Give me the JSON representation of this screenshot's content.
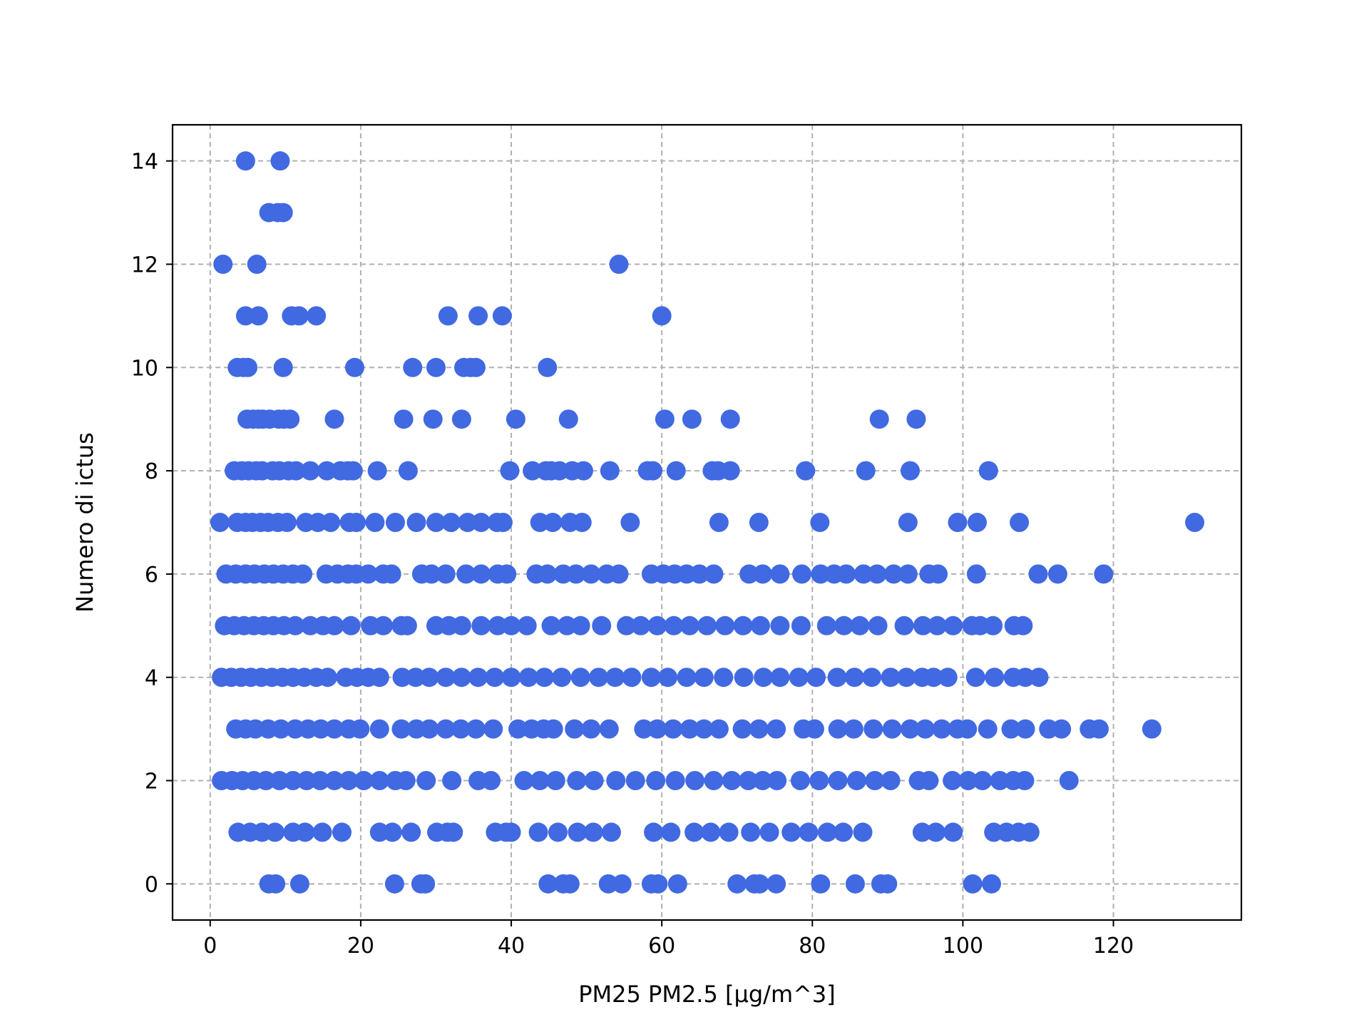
{
  "chart_data": {
    "type": "scatter",
    "title": "",
    "xlabel": "PM25 PM2.5 [µg/m^3]",
    "ylabel": "Numero di ictus",
    "xlim": [
      -5,
      137
    ],
    "ylim": [
      -0.7,
      14.7
    ],
    "xticks": [
      "0",
      "20",
      "40",
      "60",
      "80",
      "100",
      "120"
    ],
    "yticks": [
      "0",
      "2",
      "4",
      "6",
      "8",
      "10",
      "12",
      "14"
    ],
    "grid": true,
    "marker_color": "#4169e1",
    "points": [
      [
        4.7,
        14
      ],
      [
        9.3,
        14
      ],
      [
        7.8,
        13
      ],
      [
        9.0,
        13
      ],
      [
        9.7,
        13
      ],
      [
        1.7,
        12
      ],
      [
        6.2,
        12
      ],
      [
        54.3,
        12
      ],
      [
        4.7,
        11
      ],
      [
        6.4,
        11
      ],
      [
        10.8,
        11
      ],
      [
        11.8,
        11
      ],
      [
        14.1,
        11
      ],
      [
        31.6,
        11
      ],
      [
        35.6,
        11
      ],
      [
        38.8,
        11
      ],
      [
        60.0,
        11
      ],
      [
        3.6,
        10
      ],
      [
        4.4,
        10
      ],
      [
        5.0,
        10
      ],
      [
        9.7,
        10
      ],
      [
        19.2,
        10
      ],
      [
        26.9,
        10
      ],
      [
        30.0,
        10
      ],
      [
        33.7,
        10
      ],
      [
        34.6,
        10
      ],
      [
        35.3,
        10
      ],
      [
        44.8,
        10
      ],
      [
        4.9,
        9
      ],
      [
        5.7,
        9
      ],
      [
        6.4,
        9
      ],
      [
        7.0,
        9
      ],
      [
        7.9,
        9
      ],
      [
        9.1,
        9
      ],
      [
        9.8,
        9
      ],
      [
        10.6,
        9
      ],
      [
        16.5,
        9
      ],
      [
        25.7,
        9
      ],
      [
        29.6,
        9
      ],
      [
        33.4,
        9
      ],
      [
        40.6,
        9
      ],
      [
        47.6,
        9
      ],
      [
        60.4,
        9
      ],
      [
        64.0,
        9
      ],
      [
        69.1,
        9
      ],
      [
        88.9,
        9
      ],
      [
        93.8,
        9
      ],
      [
        3.2,
        8
      ],
      [
        4.2,
        8
      ],
      [
        5.1,
        8
      ],
      [
        6.1,
        8
      ],
      [
        6.9,
        8
      ],
      [
        8.3,
        8
      ],
      [
        9.2,
        8
      ],
      [
        10.4,
        8
      ],
      [
        11.4,
        8
      ],
      [
        13.3,
        8
      ],
      [
        15.5,
        8
      ],
      [
        17.3,
        8
      ],
      [
        18.3,
        8
      ],
      [
        19.0,
        8
      ],
      [
        22.2,
        8
      ],
      [
        26.3,
        8
      ],
      [
        39.8,
        8
      ],
      [
        42.8,
        8
      ],
      [
        44.6,
        8
      ],
      [
        45.3,
        8
      ],
      [
        46.4,
        8
      ],
      [
        48.1,
        8
      ],
      [
        49.6,
        8
      ],
      [
        53.1,
        8
      ],
      [
        58.1,
        8
      ],
      [
        58.8,
        8
      ],
      [
        61.9,
        8
      ],
      [
        66.7,
        8
      ],
      [
        67.5,
        8
      ],
      [
        69.1,
        8
      ],
      [
        79.1,
        8
      ],
      [
        87.1,
        8
      ],
      [
        93.0,
        8
      ],
      [
        103.4,
        8
      ],
      [
        1.3,
        7
      ],
      [
        3.6,
        7
      ],
      [
        4.7,
        7
      ],
      [
        5.6,
        7
      ],
      [
        6.7,
        7
      ],
      [
        7.7,
        7
      ],
      [
        9.0,
        7
      ],
      [
        10.2,
        7
      ],
      [
        12.7,
        7
      ],
      [
        14.3,
        7
      ],
      [
        16.0,
        7
      ],
      [
        18.5,
        7
      ],
      [
        19.4,
        7
      ],
      [
        21.9,
        7
      ],
      [
        24.6,
        7
      ],
      [
        27.4,
        7
      ],
      [
        30.0,
        7
      ],
      [
        32.0,
        7
      ],
      [
        34.2,
        7
      ],
      [
        36.0,
        7
      ],
      [
        38.1,
        7
      ],
      [
        38.9,
        7
      ],
      [
        43.8,
        7
      ],
      [
        45.5,
        7
      ],
      [
        47.8,
        7
      ],
      [
        49.4,
        7
      ],
      [
        55.8,
        7
      ],
      [
        67.6,
        7
      ],
      [
        72.9,
        7
      ],
      [
        81.0,
        7
      ],
      [
        92.7,
        7
      ],
      [
        99.3,
        7
      ],
      [
        101.9,
        7
      ],
      [
        107.5,
        7
      ],
      [
        130.8,
        7
      ],
      [
        2.1,
        6
      ],
      [
        3.4,
        6
      ],
      [
        4.7,
        6
      ],
      [
        5.9,
        6
      ],
      [
        7.2,
        6
      ],
      [
        8.4,
        6
      ],
      [
        9.7,
        6
      ],
      [
        11.0,
        6
      ],
      [
        12.3,
        6
      ],
      [
        15.4,
        6
      ],
      [
        16.9,
        6
      ],
      [
        18.3,
        6
      ],
      [
        19.4,
        6
      ],
      [
        21.0,
        6
      ],
      [
        23.0,
        6
      ],
      [
        24.1,
        6
      ],
      [
        28.1,
        6
      ],
      [
        29.4,
        6
      ],
      [
        31.3,
        6
      ],
      [
        34.0,
        6
      ],
      [
        36.0,
        6
      ],
      [
        38.2,
        6
      ],
      [
        39.4,
        6
      ],
      [
        43.3,
        6
      ],
      [
        44.8,
        6
      ],
      [
        46.9,
        6
      ],
      [
        48.6,
        6
      ],
      [
        50.6,
        6
      ],
      [
        52.7,
        6
      ],
      [
        54.3,
        6
      ],
      [
        58.6,
        6
      ],
      [
        60.2,
        6
      ],
      [
        61.7,
        6
      ],
      [
        63.3,
        6
      ],
      [
        65.0,
        6
      ],
      [
        66.9,
        6
      ],
      [
        71.6,
        6
      ],
      [
        73.4,
        6
      ],
      [
        75.7,
        6
      ],
      [
        78.6,
        6
      ],
      [
        81.1,
        6
      ],
      [
        82.9,
        6
      ],
      [
        84.5,
        6
      ],
      [
        86.8,
        6
      ],
      [
        88.6,
        6
      ],
      [
        90.8,
        6
      ],
      [
        92.7,
        6
      ],
      [
        95.5,
        6
      ],
      [
        96.7,
        6
      ],
      [
        101.8,
        6
      ],
      [
        110.0,
        6
      ],
      [
        112.6,
        6
      ],
      [
        118.7,
        6
      ],
      [
        1.9,
        5
      ],
      [
        3.2,
        5
      ],
      [
        4.5,
        5
      ],
      [
        5.8,
        5
      ],
      [
        7.1,
        5
      ],
      [
        8.4,
        5
      ],
      [
        9.8,
        5
      ],
      [
        11.3,
        5
      ],
      [
        13.3,
        5
      ],
      [
        15.0,
        5
      ],
      [
        16.5,
        5
      ],
      [
        18.7,
        5
      ],
      [
        21.3,
        5
      ],
      [
        23.0,
        5
      ],
      [
        25.4,
        5
      ],
      [
        26.2,
        5
      ],
      [
        30.0,
        5
      ],
      [
        31.7,
        5
      ],
      [
        33.4,
        5
      ],
      [
        36.0,
        5
      ],
      [
        38.2,
        5
      ],
      [
        40.0,
        5
      ],
      [
        42.1,
        5
      ],
      [
        45.3,
        5
      ],
      [
        47.4,
        5
      ],
      [
        49.2,
        5
      ],
      [
        52.0,
        5
      ],
      [
        55.3,
        5
      ],
      [
        57.2,
        5
      ],
      [
        59.4,
        5
      ],
      [
        61.6,
        5
      ],
      [
        63.7,
        5
      ],
      [
        66.0,
        5
      ],
      [
        68.4,
        5
      ],
      [
        70.8,
        5
      ],
      [
        73.1,
        5
      ],
      [
        75.7,
        5
      ],
      [
        78.5,
        5
      ],
      [
        81.9,
        5
      ],
      [
        84.2,
        5
      ],
      [
        86.3,
        5
      ],
      [
        88.7,
        5
      ],
      [
        92.2,
        5
      ],
      [
        94.7,
        5
      ],
      [
        96.6,
        5
      ],
      [
        98.7,
        5
      ],
      [
        101.2,
        5
      ],
      [
        102.3,
        5
      ],
      [
        104.0,
        5
      ],
      [
        106.8,
        5
      ],
      [
        108.0,
        5
      ],
      [
        1.5,
        4
      ],
      [
        2.8,
        4
      ],
      [
        4.1,
        4
      ],
      [
        5.4,
        4
      ],
      [
        6.8,
        4
      ],
      [
        8.2,
        4
      ],
      [
        9.6,
        4
      ],
      [
        11.0,
        4
      ],
      [
        12.5,
        4
      ],
      [
        14.1,
        4
      ],
      [
        15.6,
        4
      ],
      [
        18.0,
        4
      ],
      [
        19.5,
        4
      ],
      [
        21.0,
        4
      ],
      [
        22.5,
        4
      ],
      [
        25.5,
        4
      ],
      [
        27.3,
        4
      ],
      [
        29.1,
        4
      ],
      [
        31.3,
        4
      ],
      [
        33.4,
        4
      ],
      [
        35.6,
        4
      ],
      [
        37.8,
        4
      ],
      [
        40.0,
        4
      ],
      [
        42.3,
        4
      ],
      [
        44.4,
        4
      ],
      [
        46.7,
        4
      ],
      [
        49.2,
        4
      ],
      [
        51.6,
        4
      ],
      [
        53.8,
        4
      ],
      [
        56.0,
        4
      ],
      [
        58.6,
        4
      ],
      [
        60.8,
        4
      ],
      [
        63.3,
        4
      ],
      [
        65.6,
        4
      ],
      [
        68.2,
        4
      ],
      [
        70.9,
        4
      ],
      [
        73.5,
        4
      ],
      [
        75.7,
        4
      ],
      [
        78.2,
        4
      ],
      [
        80.5,
        4
      ],
      [
        83.3,
        4
      ],
      [
        85.6,
        4
      ],
      [
        87.9,
        4
      ],
      [
        90.4,
        4
      ],
      [
        92.5,
        4
      ],
      [
        94.6,
        4
      ],
      [
        96.1,
        4
      ],
      [
        98.0,
        4
      ],
      [
        101.7,
        4
      ],
      [
        104.2,
        4
      ],
      [
        106.7,
        4
      ],
      [
        108.3,
        4
      ],
      [
        110.1,
        4
      ],
      [
        3.4,
        3
      ],
      [
        4.7,
        3
      ],
      [
        6.0,
        3
      ],
      [
        7.7,
        3
      ],
      [
        9.4,
        3
      ],
      [
        11.3,
        3
      ],
      [
        13.0,
        3
      ],
      [
        14.7,
        3
      ],
      [
        16.5,
        3
      ],
      [
        18.4,
        3
      ],
      [
        19.9,
        3
      ],
      [
        22.5,
        3
      ],
      [
        25.4,
        3
      ],
      [
        27.4,
        3
      ],
      [
        29.1,
        3
      ],
      [
        31.3,
        3
      ],
      [
        33.3,
        3
      ],
      [
        35.3,
        3
      ],
      [
        37.6,
        3
      ],
      [
        40.9,
        3
      ],
      [
        42.7,
        3
      ],
      [
        44.3,
        3
      ],
      [
        45.6,
        3
      ],
      [
        48.4,
        3
      ],
      [
        50.6,
        3
      ],
      [
        53.0,
        3
      ],
      [
        57.6,
        3
      ],
      [
        59.4,
        3
      ],
      [
        61.5,
        3
      ],
      [
        63.7,
        3
      ],
      [
        65.6,
        3
      ],
      [
        67.6,
        3
      ],
      [
        70.7,
        3
      ],
      [
        72.9,
        3
      ],
      [
        75.2,
        3
      ],
      [
        78.8,
        3
      ],
      [
        80.3,
        3
      ],
      [
        83.4,
        3
      ],
      [
        85.5,
        3
      ],
      [
        88.1,
        3
      ],
      [
        90.6,
        3
      ],
      [
        93.0,
        3
      ],
      [
        95.0,
        3
      ],
      [
        97.2,
        3
      ],
      [
        99.3,
        3
      ],
      [
        100.6,
        3
      ],
      [
        103.3,
        3
      ],
      [
        106.4,
        3
      ],
      [
        108.3,
        3
      ],
      [
        111.4,
        3
      ],
      [
        113.1,
        3
      ],
      [
        116.8,
        3
      ],
      [
        118.1,
        3
      ],
      [
        125.1,
        3
      ],
      [
        1.5,
        2
      ],
      [
        2.9,
        2
      ],
      [
        4.3,
        2
      ],
      [
        5.8,
        2
      ],
      [
        7.4,
        2
      ],
      [
        9.2,
        2
      ],
      [
        11.0,
        2
      ],
      [
        12.8,
        2
      ],
      [
        14.6,
        2
      ],
      [
        16.5,
        2
      ],
      [
        18.4,
        2
      ],
      [
        20.4,
        2
      ],
      [
        22.5,
        2
      ],
      [
        24.6,
        2
      ],
      [
        26.0,
        2
      ],
      [
        28.7,
        2
      ],
      [
        32.1,
        2
      ],
      [
        35.6,
        2
      ],
      [
        37.3,
        2
      ],
      [
        41.7,
        2
      ],
      [
        43.8,
        2
      ],
      [
        45.9,
        2
      ],
      [
        48.7,
        2
      ],
      [
        51.0,
        2
      ],
      [
        53.9,
        2
      ],
      [
        56.5,
        2
      ],
      [
        59.2,
        2
      ],
      [
        61.8,
        2
      ],
      [
        64.4,
        2
      ],
      [
        66.9,
        2
      ],
      [
        69.3,
        2
      ],
      [
        71.5,
        2
      ],
      [
        73.4,
        2
      ],
      [
        75.3,
        2
      ],
      [
        78.4,
        2
      ],
      [
        80.9,
        2
      ],
      [
        83.4,
        2
      ],
      [
        85.9,
        2
      ],
      [
        88.3,
        2
      ],
      [
        90.4,
        2
      ],
      [
        94.1,
        2
      ],
      [
        95.5,
        2
      ],
      [
        98.6,
        2
      ],
      [
        100.7,
        2
      ],
      [
        102.6,
        2
      ],
      [
        104.9,
        2
      ],
      [
        106.7,
        2
      ],
      [
        108.2,
        2
      ],
      [
        114.1,
        2
      ],
      [
        3.7,
        1
      ],
      [
        5.3,
        1
      ],
      [
        6.9,
        1
      ],
      [
        8.6,
        1
      ],
      [
        11.0,
        1
      ],
      [
        12.6,
        1
      ],
      [
        14.9,
        1
      ],
      [
        17.5,
        1
      ],
      [
        22.5,
        1
      ],
      [
        24.2,
        1
      ],
      [
        26.7,
        1
      ],
      [
        30.1,
        1
      ],
      [
        31.5,
        1
      ],
      [
        32.3,
        1
      ],
      [
        37.9,
        1
      ],
      [
        39.3,
        1
      ],
      [
        40.0,
        1
      ],
      [
        43.6,
        1
      ],
      [
        46.2,
        1
      ],
      [
        48.8,
        1
      ],
      [
        50.9,
        1
      ],
      [
        53.3,
        1
      ],
      [
        58.9,
        1
      ],
      [
        61.2,
        1
      ],
      [
        64.3,
        1
      ],
      [
        66.5,
        1
      ],
      [
        68.9,
        1
      ],
      [
        71.8,
        1
      ],
      [
        74.3,
        1
      ],
      [
        77.2,
        1
      ],
      [
        79.5,
        1
      ],
      [
        82.0,
        1
      ],
      [
        84.1,
        1
      ],
      [
        86.7,
        1
      ],
      [
        94.6,
        1
      ],
      [
        96.4,
        1
      ],
      [
        98.7,
        1
      ],
      [
        104.1,
        1
      ],
      [
        105.8,
        1
      ],
      [
        107.4,
        1
      ],
      [
        108.9,
        1
      ],
      [
        7.8,
        0
      ],
      [
        8.7,
        0
      ],
      [
        11.9,
        0
      ],
      [
        24.5,
        0
      ],
      [
        28.0,
        0
      ],
      [
        28.6,
        0
      ],
      [
        44.9,
        0
      ],
      [
        46.9,
        0
      ],
      [
        47.8,
        0
      ],
      [
        52.9,
        0
      ],
      [
        54.7,
        0
      ],
      [
        58.6,
        0
      ],
      [
        59.5,
        0
      ],
      [
        62.1,
        0
      ],
      [
        70.0,
        0
      ],
      [
        72.3,
        0
      ],
      [
        73.0,
        0
      ],
      [
        75.2,
        0
      ],
      [
        81.1,
        0
      ],
      [
        85.7,
        0
      ],
      [
        89.1,
        0
      ],
      [
        90.0,
        0
      ],
      [
        101.3,
        0
      ],
      [
        103.8,
        0
      ]
    ]
  }
}
